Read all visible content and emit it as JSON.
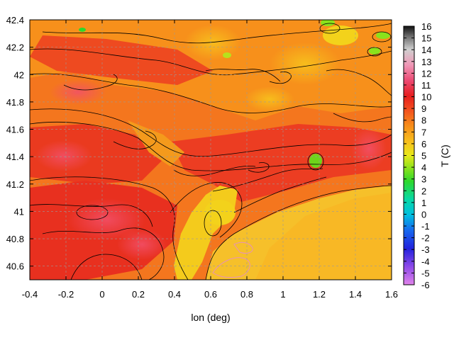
{
  "chart_data": {
    "type": "heatmap",
    "title": "",
    "xlabel": "lon (deg)",
    "ylabel": "",
    "colorbar_label": "T (C)",
    "xlim": [
      -0.4,
      1.6
    ],
    "ylim": [
      40.5,
      42.4
    ],
    "x_ticks": [
      "-0.4",
      "-0.2",
      "0",
      "0.2",
      "0.4",
      "0.6",
      "0.8",
      "1",
      "1.2",
      "1.4",
      "1.6"
    ],
    "x_tick_values": [
      -0.4,
      -0.2,
      0,
      0.2,
      0.4,
      0.6,
      0.8,
      1.0,
      1.2,
      1.4,
      1.6
    ],
    "y_ticks": [
      "40.6",
      "40.8",
      "41",
      "41.2",
      "41.4",
      "41.6",
      "41.8",
      "42",
      "42.2",
      "42.4"
    ],
    "y_tick_values": [
      40.6,
      40.8,
      41.0,
      41.2,
      41.4,
      41.6,
      41.8,
      42.0,
      42.2,
      42.4
    ],
    "color_range": [
      -6,
      16
    ],
    "colorbar_ticks": [
      "16",
      "15",
      "14",
      "13",
      "12",
      "11",
      "10",
      "9",
      "8",
      "7",
      "6",
      "5",
      "4",
      "3",
      "2",
      "1",
      "0",
      "-1",
      "-2",
      "-3",
      "-4",
      "-5",
      "-6"
    ],
    "colorbar_tick_values": [
      16,
      15,
      14,
      13,
      12,
      11,
      10,
      9,
      8,
      7,
      6,
      5,
      4,
      3,
      2,
      1,
      0,
      -1,
      -2,
      -3,
      -4,
      -5,
      -6
    ],
    "grid": true,
    "contours": true
  }
}
